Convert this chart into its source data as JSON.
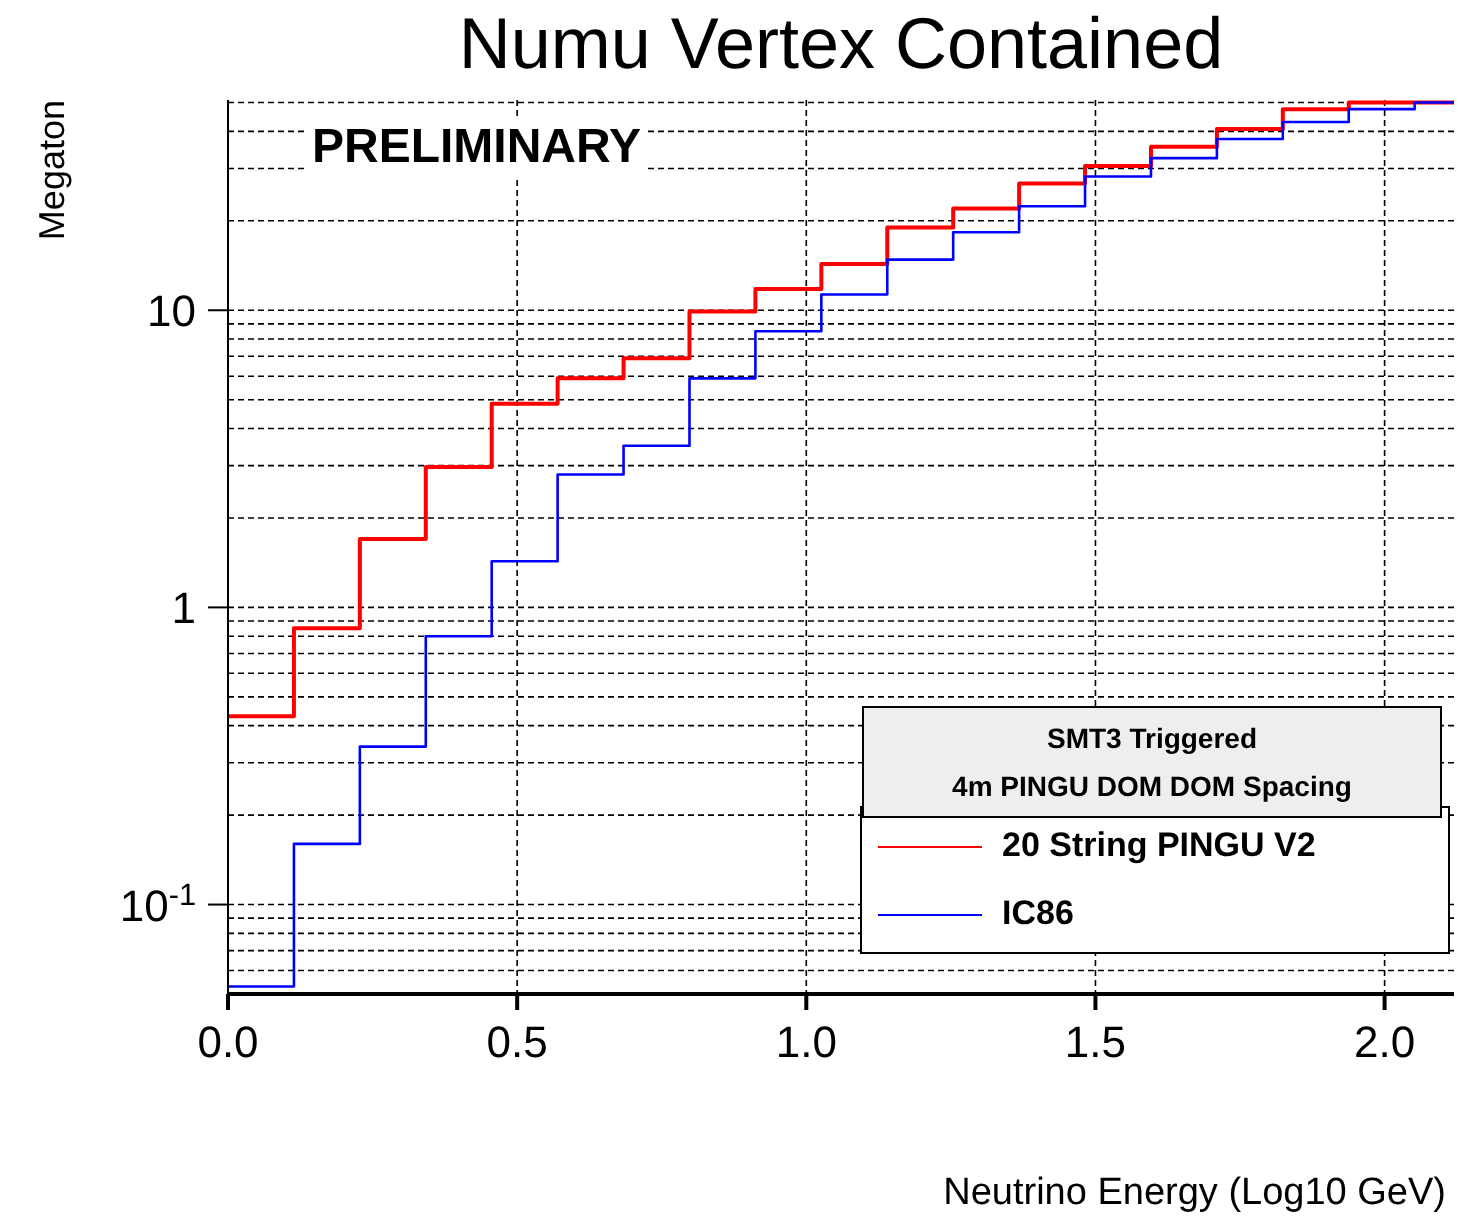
{
  "chart_data": {
    "type": "histogram",
    "title": "Numu Vertex Contained",
    "xlabel": "Neutrino Energy (Log10 GeV)",
    "ylabel": "Megaton",
    "annotations": [
      "PRELIMINARY",
      "SMT3 Triggered",
      "4m PINGU DOM DOM Spacing"
    ],
    "bins": [
      0,
      0.114,
      0.228,
      0.342,
      0.456,
      0.57,
      0.684,
      0.798,
      0.912,
      1.026,
      1.14,
      1.254,
      1.368,
      1.482,
      1.596,
      1.71,
      1.824,
      1.938,
      2.052,
      2.12
    ],
    "series": [
      {
        "name": "20 String PINGU V2",
        "color": "#ff0000",
        "values": [
          0.43,
          0.85,
          1.7,
          2.97,
          4.85,
          5.9,
          6.9,
          9.9,
          11.8,
          14.3,
          19,
          22,
          26.7,
          30.6,
          35.5,
          40.7,
          47.5,
          50,
          50
        ]
      },
      {
        "name": "IC86",
        "color": "#0000ff",
        "values": [
          0.053,
          0.16,
          0.34,
          0.8,
          1.43,
          2.8,
          3.5,
          5.9,
          8.5,
          11.3,
          14.8,
          18.3,
          22.4,
          28.2,
          32.5,
          37.7,
          43,
          47.5,
          50
        ]
      }
    ],
    "xlim": [
      0,
      2.12
    ],
    "xticks": [
      {
        "value": 0,
        "label": "0.0"
      },
      {
        "value": 0.5,
        "label": "0.5"
      },
      {
        "value": 1,
        "label": "1.0"
      },
      {
        "value": 1.5,
        "label": "1.5"
      },
      {
        "value": 2,
        "label": "2.0"
      }
    ],
    "ylim": [
      0.05,
      51
    ],
    "yticks": [
      {
        "value": 0.1,
        "label": "10$^{-1}$"
      },
      1,
      10
    ],
    "log": "y",
    "grid": true,
    "legend": "bottom right",
    "line_style": "solid"
  }
}
